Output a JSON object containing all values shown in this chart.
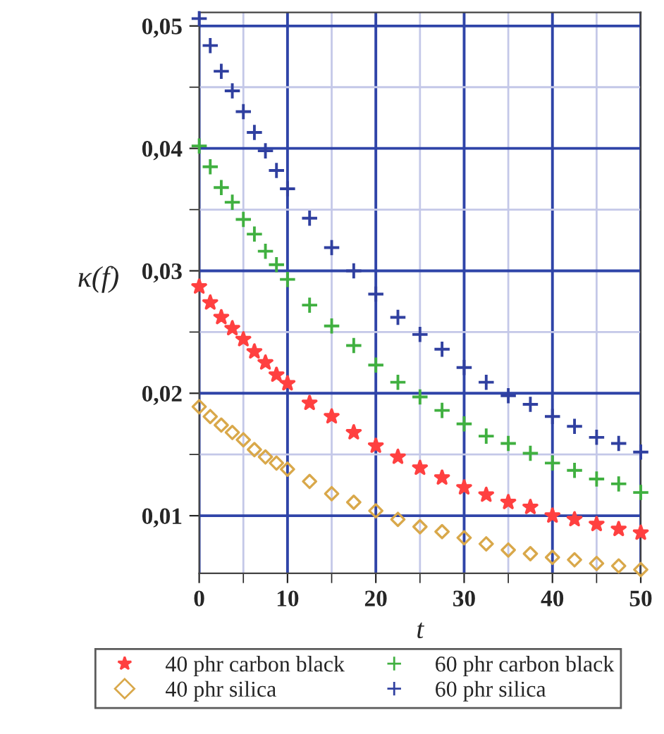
{
  "chart_data": {
    "type": "scatter",
    "xlabel": "t",
    "ylabel": "κ(f)",
    "x": [
      0,
      1.25,
      2.5,
      3.75,
      5,
      6.25,
      7.5,
      8.75,
      10,
      12.5,
      15,
      17.5,
      20,
      22.5,
      25,
      27.5,
      30,
      32.5,
      35,
      37.5,
      40,
      42.5,
      45,
      47.5,
      50
    ],
    "series": [
      {
        "name": "40 phr carbon black",
        "color": "#ff4040",
        "marker": "star",
        "values": [
          0.0287,
          0.0274,
          0.0262,
          0.0253,
          0.0244,
          0.0234,
          0.0225,
          0.0215,
          0.0208,
          0.0192,
          0.0181,
          0.0168,
          0.0157,
          0.0148,
          0.0139,
          0.0131,
          0.0123,
          0.0117,
          0.0111,
          0.0107,
          0.01,
          0.0097,
          0.0093,
          0.0089,
          0.0086
        ]
      },
      {
        "name": "40 phr silica",
        "color": "#d9a84a",
        "marker": "diamond",
        "values": [
          0.0189,
          0.0181,
          0.0174,
          0.0168,
          0.0162,
          0.0154,
          0.0148,
          0.0143,
          0.0138,
          0.0128,
          0.0118,
          0.0111,
          0.0104,
          0.0097,
          0.0091,
          0.0087,
          0.0082,
          0.0077,
          0.0072,
          0.0069,
          0.0066,
          0.0064,
          0.0061,
          0.0059,
          0.0056
        ]
      },
      {
        "name": "60 phr carbon black",
        "color": "#40b040",
        "marker": "cross",
        "values": [
          0.0402,
          0.0385,
          0.0368,
          0.0356,
          0.0342,
          0.033,
          0.0316,
          0.0305,
          0.0293,
          0.0272,
          0.0255,
          0.0239,
          0.0223,
          0.0209,
          0.0197,
          0.0186,
          0.0175,
          0.0165,
          0.0159,
          0.0151,
          0.0143,
          0.0137,
          0.013,
          0.0126,
          0.0119
        ]
      },
      {
        "name": "60 phr silica",
        "color": "#3040a0",
        "marker": "cross",
        "values": [
          0.0506,
          0.0484,
          0.0463,
          0.0447,
          0.043,
          0.0413,
          0.0398,
          0.0382,
          0.0367,
          0.0343,
          0.0319,
          0.03,
          0.0281,
          0.0262,
          0.0248,
          0.0236,
          0.0221,
          0.0209,
          0.0198,
          0.0191,
          0.0181,
          0.0173,
          0.0164,
          0.0159,
          0.0152
        ]
      }
    ],
    "xlim": [
      0,
      50
    ],
    "xticks": [
      0,
      10,
      20,
      30,
      40,
      50
    ],
    "ylim": [
      0.0053,
      0.0511
    ],
    "yticks": [
      {
        "value": 0.01,
        "label": "0,01"
      },
      {
        "value": 0.02,
        "label": "0,02"
      },
      {
        "value": 0.03,
        "label": "0,03"
      },
      {
        "value": 0.04,
        "label": "0,04"
      },
      {
        "value": 0.05,
        "label": "0,05"
      }
    ],
    "grid": true,
    "legend": "bottom"
  }
}
